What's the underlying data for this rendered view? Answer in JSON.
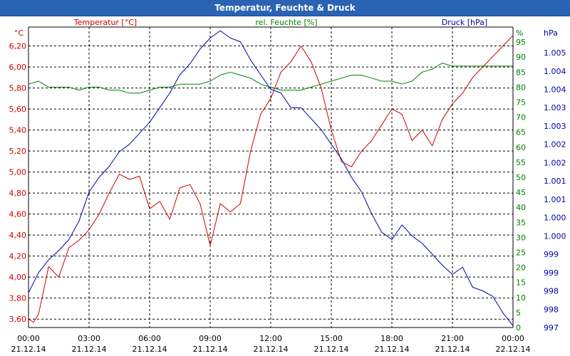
{
  "window": {
    "title": "Temperatur, Feuchte & Druck"
  },
  "colors": {
    "temperature": "#cc0000",
    "humidity": "#008000",
    "pressure": "#0000aa",
    "grid": "#000000",
    "titlebar": "#2a63b4"
  },
  "chart_data": {
    "type": "line",
    "title": "Temperatur, Feuchte & Druck",
    "grid": true,
    "x": {
      "range_hours": [
        0,
        24
      ],
      "ticks": [
        {
          "hour": 0,
          "time": "00:00",
          "date": "21.12.14"
        },
        {
          "hour": 3,
          "time": "03:00",
          "date": "21.12.14"
        },
        {
          "hour": 6,
          "time": "06:00",
          "date": "21.12.14"
        },
        {
          "hour": 9,
          "time": "09:00",
          "date": "21.12.14"
        },
        {
          "hour": 12,
          "time": "12:00",
          "date": "21.12.14"
        },
        {
          "hour": 15,
          "time": "15:00",
          "date": "21.12.14"
        },
        {
          "hour": 18,
          "time": "18:00",
          "date": "21.12.14"
        },
        {
          "hour": 21,
          "time": "21:00",
          "date": "21.12.14"
        },
        {
          "hour": 24,
          "time": "00:00",
          "date": "22.12.14"
        }
      ]
    },
    "axes": {
      "temperature": {
        "unit": "°C",
        "legend": "Temperatur [°C]",
        "range": [
          3.52,
          6.38
        ],
        "ticks": [
          "3,60",
          "3,80",
          "4,00",
          "4,20",
          "4,40",
          "4,60",
          "4,80",
          "5,00",
          "5,20",
          "5,40",
          "5,60",
          "5,80",
          "6,00",
          "6,20"
        ],
        "tick_values": [
          3.6,
          3.8,
          4.0,
          4.2,
          4.4,
          4.6,
          4.8,
          5.0,
          5.2,
          5.4,
          5.6,
          5.8,
          6.0,
          6.2
        ]
      },
      "humidity": {
        "unit": "%",
        "legend": "rel. Feuchte [%]",
        "range": [
          0,
          100
        ],
        "ticks": [
          "0",
          "5",
          "10",
          "15",
          "20",
          "25",
          "30",
          "35",
          "40",
          "45",
          "50",
          "55",
          "60",
          "65",
          "70",
          "75",
          "80",
          "85",
          "90",
          "95"
        ],
        "tick_values": [
          0,
          5,
          10,
          15,
          20,
          25,
          30,
          35,
          40,
          45,
          50,
          55,
          60,
          65,
          70,
          75,
          80,
          85,
          90,
          95
        ]
      },
      "pressure": {
        "unit": "hPa",
        "legend": "Druck [hPa]",
        "range": [
          997.0,
          1005.2
        ],
        "ticks": [
          "997",
          "998",
          "998",
          "999",
          "999",
          "1.000",
          "1.000",
          "1.001",
          "1.001",
          "1.002",
          "1.002",
          "1.003",
          "1.003",
          "1.004",
          "1.004",
          "1.005"
        ],
        "tick_values": [
          997.0,
          997.5,
          998.0,
          998.5,
          999.0,
          999.5,
          1000.0,
          1000.5,
          1001.0,
          1001.5,
          1002.0,
          1002.5,
          1003.0,
          1003.5,
          1004.0,
          1004.5
        ]
      }
    },
    "series": [
      {
        "name": "Temperatur [°C]",
        "axis": "temperature",
        "color": "#cc0000",
        "hours": [
          0,
          0.25,
          0.5,
          1.0,
          1.5,
          2.0,
          2.5,
          3.0,
          3.5,
          4.0,
          4.5,
          5.0,
          5.5,
          6.0,
          6.5,
          7.0,
          7.5,
          8.0,
          8.5,
          9.0,
          9.5,
          10.0,
          10.5,
          11.0,
          11.5,
          12.0,
          12.5,
          13.0,
          13.5,
          14.0,
          14.5,
          15.0,
          15.5,
          16.0,
          16.5,
          17.0,
          17.5,
          18.0,
          18.5,
          19.0,
          19.5,
          20.0,
          20.5,
          21.0,
          21.5,
          22.0,
          22.5,
          23.0,
          23.5,
          24.0
        ],
        "values": [
          3.6,
          3.57,
          3.65,
          4.1,
          4.0,
          4.28,
          4.35,
          4.45,
          4.6,
          4.8,
          4.98,
          4.93,
          4.96,
          4.65,
          4.72,
          4.55,
          4.85,
          4.88,
          4.7,
          4.3,
          4.7,
          4.62,
          4.7,
          5.2,
          5.55,
          5.7,
          5.95,
          6.05,
          6.2,
          6.05,
          5.8,
          5.4,
          5.1,
          5.05,
          5.2,
          5.3,
          5.45,
          5.6,
          5.55,
          5.3,
          5.4,
          5.25,
          5.5,
          5.65,
          5.75,
          5.9,
          6.0,
          6.1,
          6.2,
          6.3
        ]
      },
      {
        "name": "rel. Feuchte [%]",
        "axis": "humidity",
        "color": "#008000",
        "hours": [
          0,
          0.5,
          1.0,
          1.5,
          2.0,
          2.5,
          3.0,
          3.5,
          4.0,
          4.5,
          5.0,
          5.5,
          6.0,
          6.5,
          7.0,
          7.5,
          8.0,
          8.5,
          9.0,
          9.5,
          10.0,
          10.5,
          11.0,
          11.5,
          12.0,
          12.5,
          13.0,
          13.5,
          14.0,
          14.5,
          15.0,
          15.5,
          16.0,
          16.5,
          17.0,
          17.5,
          18.0,
          18.5,
          19.0,
          19.5,
          20.0,
          20.5,
          21.0,
          21.5,
          22.0,
          22.5,
          23.0,
          23.5,
          24.0
        ],
        "values": [
          81,
          82,
          80,
          80,
          80,
          79,
          80,
          80,
          79,
          79,
          78,
          78,
          79,
          80,
          80,
          81,
          81,
          81,
          82,
          84,
          85,
          84,
          83,
          81,
          80,
          79,
          79,
          79,
          80,
          81,
          82,
          83,
          84,
          84,
          83,
          82,
          82,
          81,
          82,
          85,
          86,
          88,
          87,
          87,
          87,
          87,
          87,
          87,
          87
        ]
      },
      {
        "name": "Druck [hPa]",
        "axis": "pressure",
        "color": "#0000aa",
        "hours": [
          0,
          0.5,
          1.0,
          1.5,
          2.0,
          2.5,
          3.0,
          3.5,
          4.0,
          4.5,
          5.0,
          5.5,
          6.0,
          6.5,
          7.0,
          7.5,
          8.0,
          8.5,
          9.0,
          9.5,
          10.0,
          10.5,
          11.0,
          11.5,
          12.0,
          12.5,
          13.0,
          13.5,
          14.0,
          14.5,
          15.0,
          15.5,
          16.0,
          16.5,
          17.0,
          17.5,
          18.0,
          18.5,
          19.0,
          19.5,
          20.0,
          20.5,
          21.0,
          21.5,
          22.0,
          22.5,
          23.0,
          23.5,
          24.0
        ],
        "values": [
          997.95,
          998.5,
          998.85,
          999.1,
          999.4,
          999.9,
          1000.7,
          1001.1,
          1001.4,
          1001.8,
          1002.0,
          1002.3,
          1002.6,
          1003.0,
          1003.4,
          1003.9,
          1004.2,
          1004.6,
          1004.9,
          1005.1,
          1004.9,
          1004.8,
          1004.3,
          1003.9,
          1003.5,
          1003.4,
          1003.0,
          1003.0,
          1002.7,
          1002.4,
          1002.0,
          1001.6,
          1001.1,
          1000.7,
          1000.1,
          999.6,
          999.4,
          999.8,
          999.5,
          999.3,
          999.0,
          998.7,
          998.45,
          998.65,
          998.1,
          998.0,
          997.85,
          997.4,
          997.05
        ]
      }
    ]
  }
}
